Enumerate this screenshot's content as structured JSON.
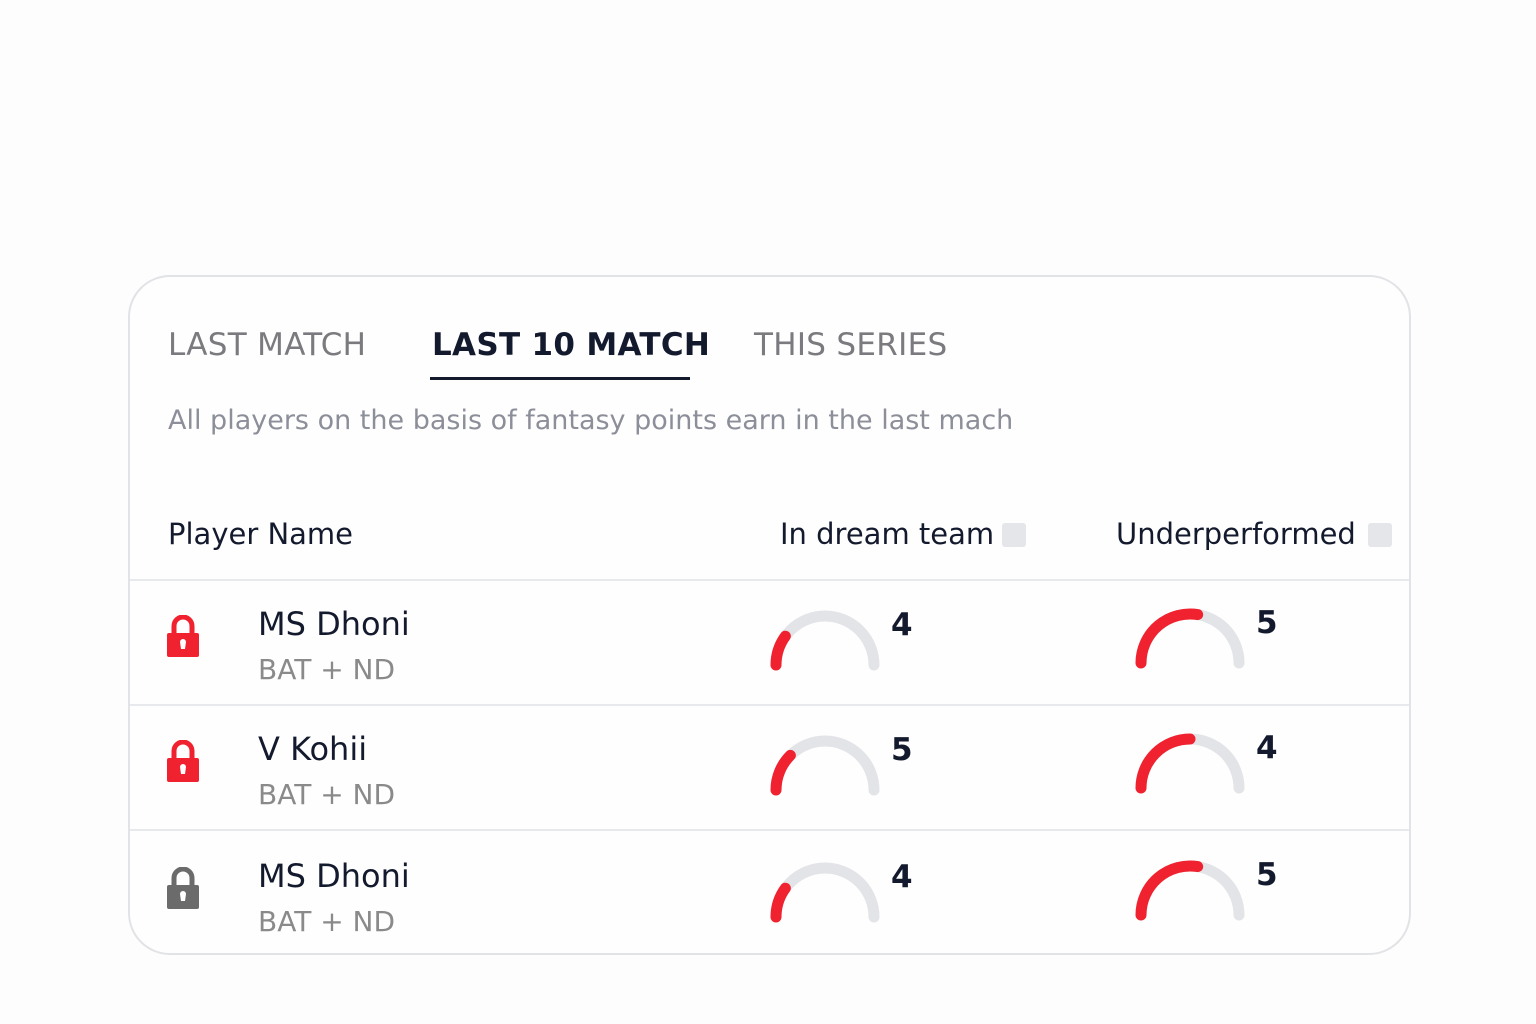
{
  "tabs": [
    {
      "label": "LAST MATCH",
      "active": false
    },
    {
      "label": "LAST 10 MATCH",
      "active": true
    },
    {
      "label": "THIS SERIES",
      "active": false
    }
  ],
  "subtitle": "All players on the basis of fantasy points earn in the last mach",
  "columns": {
    "player": "Player Name",
    "dream": "In dream team",
    "under": "Underperformed"
  },
  "colors": {
    "accent": "#f0222f",
    "track": "#e3e4e7",
    "locked_gray": "#6b6b6b",
    "text": "#141a2e"
  },
  "rows": [
    {
      "name": "MS Dhoni",
      "role": "BAT + ND",
      "lock_icon": "lock-icon",
      "lock_color": "#f0222f",
      "dream": {
        "value": "4",
        "fill": 0.2
      },
      "under": {
        "value": "5",
        "fill": 0.55
      }
    },
    {
      "name": "V Kohii",
      "role": "BAT + ND",
      "lock_icon": "lock-icon",
      "lock_color": "#f0222f",
      "dream": {
        "value": "5",
        "fill": 0.25
      },
      "under": {
        "value": "4",
        "fill": 0.5
      }
    },
    {
      "name": "MS Dhoni",
      "role": "BAT + ND",
      "lock_icon": "lock-icon",
      "lock_color": "#6b6b6b",
      "dream": {
        "value": "4",
        "fill": 0.2
      },
      "under": {
        "value": "5",
        "fill": 0.55
      }
    }
  ]
}
